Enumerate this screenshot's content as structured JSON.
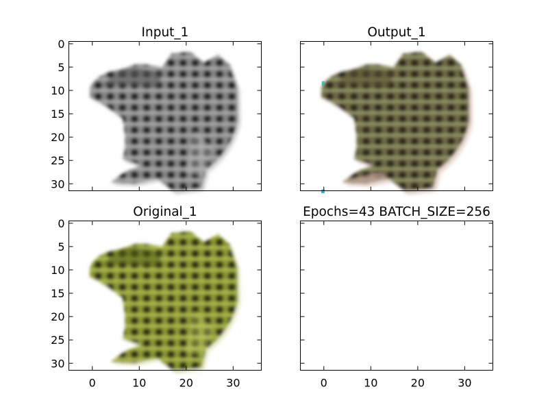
{
  "chart_data": [
    {
      "type": "image",
      "title": "Input_1",
      "image_description": "grayscale frog, facing left",
      "palette": [
        "#2f2f2f",
        "#7a7a7a",
        "#d8d8d8"
      ],
      "xlim": [
        -5,
        36
      ],
      "ylim": [
        31.5,
        -0.5
      ],
      "xticks": [
        0,
        10,
        20,
        30
      ],
      "yticks": [
        0,
        5,
        10,
        15,
        20,
        25,
        30
      ],
      "show_xtick_labels": false,
      "show_ytick_labels": true
    },
    {
      "type": "image",
      "title": "Output_1",
      "image_description": "reconstructed colour frog, muted olive-brown tones with pinkish fringes",
      "palette": [
        "#3a3625",
        "#6e6a47",
        "#b9a58e",
        "#e8d9d0"
      ],
      "xlim": [
        -5,
        36
      ],
      "ylim": [
        31.5,
        -0.5
      ],
      "xticks": [
        0,
        10,
        20,
        30
      ],
      "yticks": [
        0,
        5,
        10,
        15,
        20,
        25,
        30
      ],
      "show_xtick_labels": false,
      "show_ytick_labels": false
    },
    {
      "type": "image",
      "title": "Original_1",
      "image_description": "original colour frog, yellow-green with dark spots",
      "palette": [
        "#2e3314",
        "#7b8a2c",
        "#b8c15a",
        "#eef0cf"
      ],
      "xlim": [
        -5,
        36
      ],
      "ylim": [
        31.5,
        -0.5
      ],
      "xticks": [
        0,
        10,
        20,
        30
      ],
      "yticks": [
        0,
        5,
        10,
        15,
        20,
        25,
        30
      ],
      "show_xtick_labels": true,
      "show_ytick_labels": true
    },
    {
      "type": "image",
      "title": "Epochs=43 BATCH_SIZE=256",
      "image_description": "empty panel",
      "palette": [],
      "xlim": [
        -5,
        36
      ],
      "ylim": [
        31.5,
        -0.5
      ],
      "xticks": [
        0,
        10,
        20,
        30
      ],
      "yticks": [
        0,
        5,
        10,
        15,
        20,
        25,
        30
      ],
      "show_xtick_labels": true,
      "show_ytick_labels": false
    }
  ]
}
